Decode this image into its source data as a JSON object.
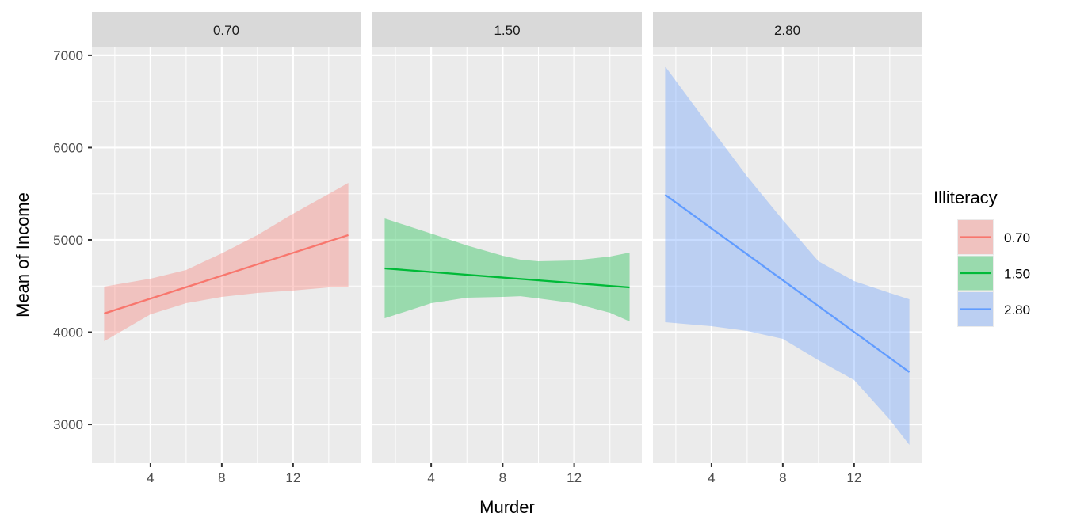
{
  "chart_data": {
    "type": "line",
    "title": "",
    "xlabel": "Murder",
    "ylabel": "Mean of Income",
    "xlim": [
      0.715,
      15.785
    ],
    "ylim": [
      2580,
      7085
    ],
    "x_ticks": [
      4,
      8,
      12
    ],
    "x_minor": [
      2,
      6,
      10,
      14
    ],
    "y_ticks": [
      3000,
      4000,
      5000,
      6000,
      7000
    ],
    "y_minor": [
      3500,
      4500,
      5500,
      6500
    ],
    "grid": true,
    "legend": {
      "title": "Illiteracy",
      "placement": "right"
    },
    "panels": [
      {
        "label": "0.70",
        "color": "#F8766D",
        "line": {
          "x": [
            1.4,
            15.1
          ],
          "y": [
            4202,
            5052
          ]
        },
        "ribbon": {
          "x": [
            1.4,
            4,
            6,
            8,
            10,
            12,
            14,
            15.1
          ],
          "upper": [
            4494,
            4579,
            4674,
            4854,
            5052,
            5283,
            5498,
            5618
          ],
          "lower": [
            3901,
            4193,
            4313,
            4382,
            4425,
            4451,
            4485,
            4494
          ]
        }
      },
      {
        "label": "1.50",
        "color": "#00BA38",
        "line": {
          "x": [
            1.4,
            15.1
          ],
          "y": [
            4691,
            4485
          ]
        },
        "ribbon": {
          "x": [
            1.4,
            4,
            6,
            8,
            9,
            10,
            12,
            14,
            15.1
          ],
          "upper": [
            5232,
            5069,
            4940,
            4828,
            4785,
            4768,
            4777,
            4820,
            4863
          ],
          "lower": [
            4150,
            4313,
            4373,
            4382,
            4390,
            4365,
            4313,
            4210,
            4116
          ]
        }
      },
      {
        "label": "2.80",
        "color": "#619CFF",
        "line": {
          "x": [
            1.4,
            15.1
          ],
          "y": [
            5489,
            3567
          ]
        },
        "ribbon": {
          "x": [
            1.4,
            4,
            6,
            8,
            10,
            12,
            14,
            15.1
          ],
          "upper": [
            6880,
            6202,
            5687,
            5215,
            4768,
            4554,
            4425,
            4356
          ],
          "lower": [
            4107,
            4064,
            4013,
            3927,
            3695,
            3481,
            3052,
            2777
          ]
        }
      }
    ]
  }
}
